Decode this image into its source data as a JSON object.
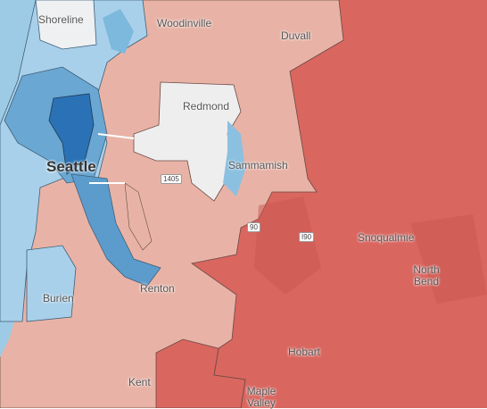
{
  "map": {
    "labels": [
      "Shoreline",
      "Woodinville",
      "Duvall",
      "Redmond",
      "Seattle",
      "Sammamish",
      "1405",
      "90",
      "I90",
      "Snoqualmie",
      "North Bend",
      "Burien",
      "Renton",
      "Hobart",
      "Kent",
      "Maple Valley"
    ]
  }
}
